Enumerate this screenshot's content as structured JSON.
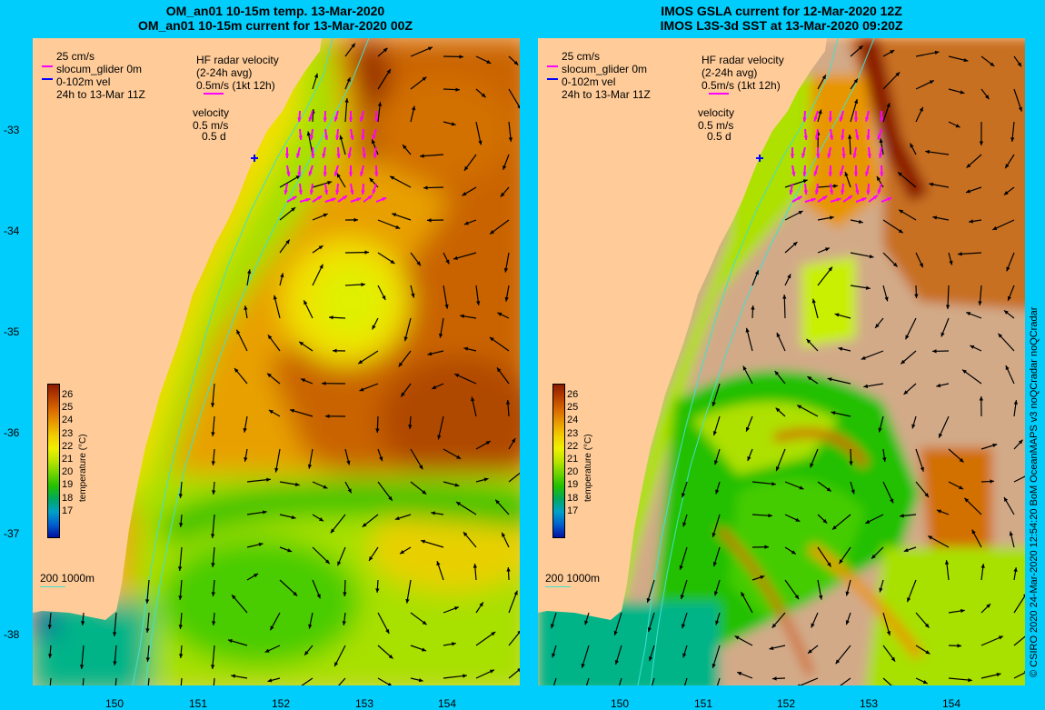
{
  "titles": {
    "left_line1": "OM_an01 10-15m temp. 13-Mar-2020",
    "left_line2": "OM_an01 10-15m current for 13-Mar-2020 00Z",
    "right_line1": "IMOS GSLA current for 12-Mar-2020 12Z",
    "right_line2": "IMOS L3S-3d SST at 13-Mar-2020 09:20Z"
  },
  "legend": {
    "scale": "25 cm/s",
    "glider": "slocum_glider 0m",
    "vel": "0-102m vel",
    "period": "24h to 13-Mar 11Z",
    "hf_line1": "HF radar velocity",
    "hf_line2": "(2-24h avg)",
    "hf_line3": "0.5m/s (1kt 12h)",
    "vel_label": "velocity",
    "vel_scale1": "0.5 m/s",
    "vel_scale2": "0.5 d",
    "isobaths": "200  1000m"
  },
  "colorbar": {
    "title": "temperature (°C)",
    "ticks": [
      "26",
      "25",
      "24",
      "23",
      "22",
      "21",
      "20",
      "19",
      "18",
      "17"
    ],
    "colors": [
      "#8b1a00",
      "#b84000",
      "#d96a00",
      "#e89b00",
      "#f2cc00",
      "#f0f000",
      "#bce400",
      "#6ed400",
      "#22c000",
      "#00a860",
      "#00a0c8",
      "#0060d0",
      "#0010a0"
    ]
  },
  "axes": {
    "y_ticks": [
      "-33",
      "-34",
      "-35",
      "-36",
      "-37",
      "-38"
    ],
    "x_ticks_left": [
      "150",
      "151",
      "152",
      "153",
      "154"
    ],
    "x_ticks_right": [
      "150",
      "151",
      "152",
      "153",
      "154"
    ]
  },
  "credit": "© CSIRO 2020  24-Mar-2020 12:54:20 BoM OceanMAPS v3 noQCradar noQCradar",
  "colors": {
    "background": "#00cdfc",
    "land": "#ffcc99",
    "cloud": "#d2aa88",
    "hf_radar": "#ff00ff",
    "glider": "#0000ff",
    "isobath": "#40e0d0"
  }
}
